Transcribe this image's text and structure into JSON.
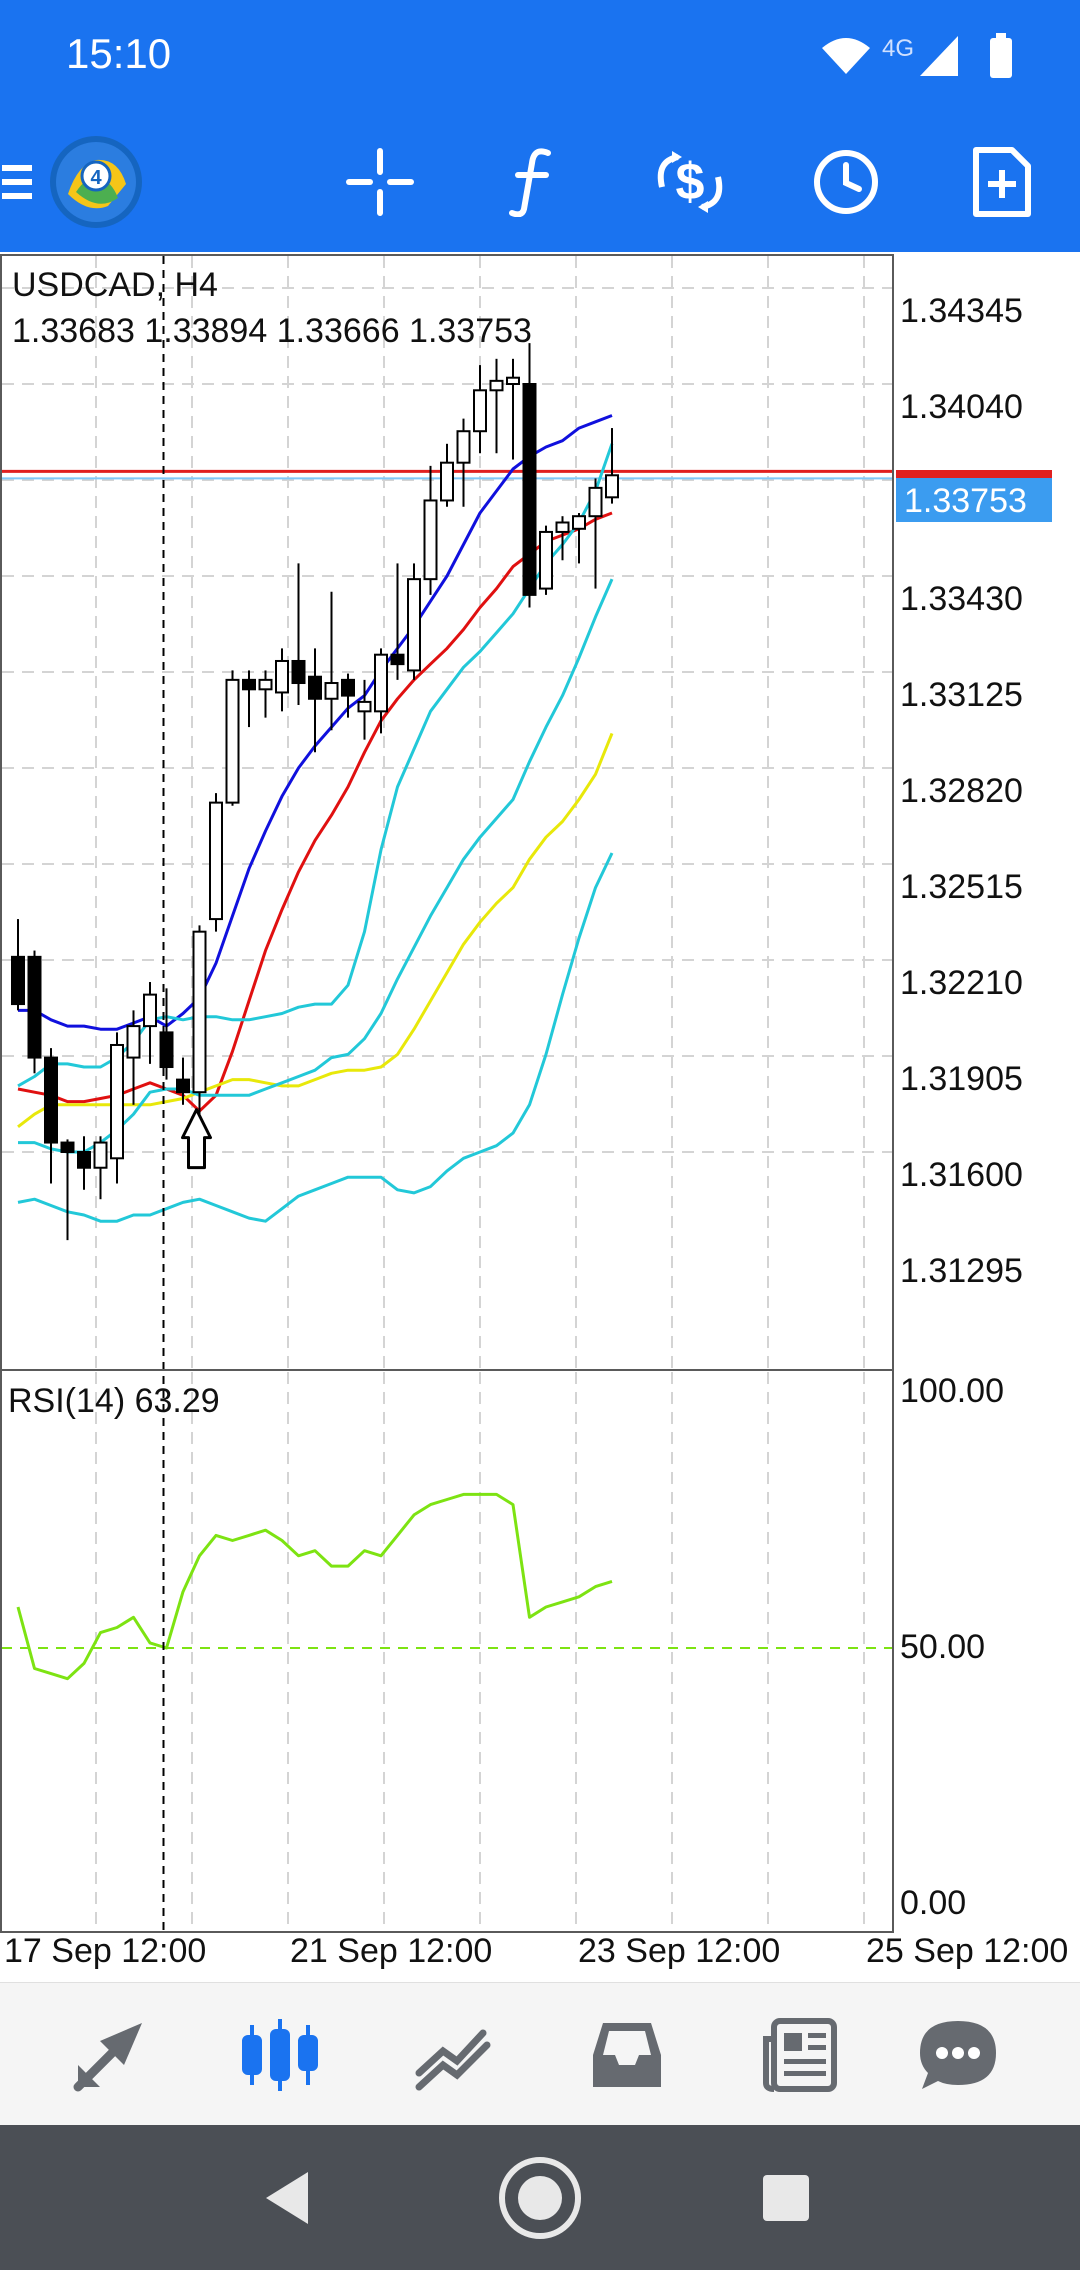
{
  "status_bar": {
    "time": "15:10",
    "network": "4G",
    "icons": [
      "wifi-icon",
      "signal-icon",
      "battery-icon"
    ]
  },
  "toolbar": {
    "icons": [
      "menu-icon",
      "app-logo-icon",
      "crosshair-icon",
      "indicators-icon",
      "symbol-change-icon",
      "timeframe-icon",
      "new-order-icon"
    ],
    "logo_badge": "4",
    "accent": "#1a73f0"
  },
  "chart": {
    "symbol_timeframe": "USDCAD, H4",
    "ohlc": "1.33683 1.33894 1.33666 1.33753",
    "current_price": "1.33753",
    "price_labels": [
      "1.34345",
      "1.34040",
      "1.33430",
      "1.33125",
      "1.32820",
      "1.32515",
      "1.32210",
      "1.31905",
      "1.31600",
      "1.31295"
    ],
    "rsi_label": "RSI(14) 63.29",
    "rsi_levels": [
      "100.00",
      "50.00",
      "0.00"
    ],
    "time_labels": [
      "17 Sep 12:00",
      "21 Sep 12:00",
      "23 Sep 12:00",
      "25 Sep 12:00"
    ]
  },
  "chart_data": {
    "type": "candlestick",
    "title": "USDCAD, H4",
    "ylim": [
      1.311,
      1.3463
    ],
    "bid_line": 1.33753,
    "candles": [
      {
        "o": 1.3222,
        "h": 1.3234,
        "l": 1.3205,
        "c": 1.3207
      },
      {
        "o": 1.3222,
        "h": 1.3224,
        "l": 1.3185,
        "c": 1.319
      },
      {
        "o": 1.319,
        "h": 1.3193,
        "l": 1.315,
        "c": 1.3163
      },
      {
        "o": 1.3163,
        "h": 1.3164,
        "l": 1.3132,
        "c": 1.316
      },
      {
        "o": 1.316,
        "h": 1.3165,
        "l": 1.3148,
        "c": 1.3155
      },
      {
        "o": 1.3155,
        "h": 1.3165,
        "l": 1.3145,
        "c": 1.3163
      },
      {
        "o": 1.3158,
        "h": 1.3198,
        "l": 1.315,
        "c": 1.3194
      },
      {
        "o": 1.319,
        "h": 1.3205,
        "l": 1.3175,
        "c": 1.32
      },
      {
        "o": 1.32,
        "h": 1.3214,
        "l": 1.3188,
        "c": 1.321
      },
      {
        "o": 1.3198,
        "h": 1.3212,
        "l": 1.3183,
        "c": 1.3187
      },
      {
        "o": 1.3183,
        "h": 1.319,
        "l": 1.3175,
        "c": 1.3179
      },
      {
        "o": 1.3179,
        "h": 1.3232,
        "l": 1.3172,
        "c": 1.323
      },
      {
        "o": 1.3234,
        "h": 1.3274,
        "l": 1.323,
        "c": 1.3271
      },
      {
        "o": 1.3271,
        "h": 1.3313,
        "l": 1.327,
        "c": 1.331
      },
      {
        "o": 1.331,
        "h": 1.3313,
        "l": 1.3295,
        "c": 1.3307
      },
      {
        "o": 1.3307,
        "h": 1.3313,
        "l": 1.3298,
        "c": 1.331
      },
      {
        "o": 1.3306,
        "h": 1.332,
        "l": 1.33,
        "c": 1.3316
      },
      {
        "o": 1.3316,
        "h": 1.3347,
        "l": 1.3302,
        "c": 1.3309
      },
      {
        "o": 1.3311,
        "h": 1.332,
        "l": 1.3287,
        "c": 1.3304
      },
      {
        "o": 1.3304,
        "h": 1.3338,
        "l": 1.3294,
        "c": 1.3309
      },
      {
        "o": 1.331,
        "h": 1.3312,
        "l": 1.3298,
        "c": 1.3305
      },
      {
        "o": 1.33,
        "h": 1.331,
        "l": 1.3291,
        "c": 1.3303
      },
      {
        "o": 1.33,
        "h": 1.332,
        "l": 1.3293,
        "c": 1.3318
      },
      {
        "o": 1.3318,
        "h": 1.3347,
        "l": 1.331,
        "c": 1.3315
      },
      {
        "o": 1.3313,
        "h": 1.3347,
        "l": 1.331,
        "c": 1.3342
      },
      {
        "o": 1.3342,
        "h": 1.3378,
        "l": 1.3337,
        "c": 1.3367
      },
      {
        "o": 1.3367,
        "h": 1.3385,
        "l": 1.3365,
        "c": 1.3379
      },
      {
        "o": 1.3379,
        "h": 1.3393,
        "l": 1.3365,
        "c": 1.3389
      },
      {
        "o": 1.3389,
        "h": 1.341,
        "l": 1.3382,
        "c": 1.3402
      },
      {
        "o": 1.3402,
        "h": 1.3412,
        "l": 1.3382,
        "c": 1.3405
      },
      {
        "o": 1.3404,
        "h": 1.3412,
        "l": 1.338,
        "c": 1.3406
      },
      {
        "o": 1.3404,
        "h": 1.3417,
        "l": 1.3333,
        "c": 1.3337
      },
      {
        "o": 1.3339,
        "h": 1.3359,
        "l": 1.3337,
        "c": 1.3357
      },
      {
        "o": 1.3357,
        "h": 1.3362,
        "l": 1.3348,
        "c": 1.336
      },
      {
        "o": 1.3358,
        "h": 1.3363,
        "l": 1.3347,
        "c": 1.3362
      },
      {
        "o": 1.3362,
        "h": 1.3374,
        "l": 1.3339,
        "c": 1.3371
      },
      {
        "o": 1.3368,
        "h": 1.339,
        "l": 1.3366,
        "c": 1.3375
      }
    ],
    "lines": [
      {
        "color": "#1010dd",
        "values": [
          1.3205,
          1.3205,
          1.3202,
          1.32,
          1.32,
          1.3199,
          1.3199,
          1.3201,
          1.3203,
          1.32,
          1.3204,
          1.3209,
          1.322,
          1.3235,
          1.325,
          1.3262,
          1.3273,
          1.3282,
          1.3289,
          1.3295,
          1.3301,
          1.3305,
          1.3313,
          1.332,
          1.3327,
          1.3335,
          1.3343,
          1.3353,
          1.3363,
          1.337,
          1.3377,
          1.3381,
          1.3384,
          1.3386,
          1.339,
          1.3392,
          1.3394
        ]
      },
      {
        "color": "#e01010",
        "values": [
          1.318,
          1.3179,
          1.3178,
          1.3176,
          1.3176,
          1.3177,
          1.3178,
          1.318,
          1.3182,
          1.318,
          1.3178,
          1.3173,
          1.3178,
          1.3192,
          1.3208,
          1.3224,
          1.3237,
          1.3249,
          1.3259,
          1.3267,
          1.3276,
          1.3287,
          1.3297,
          1.3304,
          1.331,
          1.3315,
          1.332,
          1.3326,
          1.3333,
          1.3339,
          1.3346,
          1.335,
          1.3354,
          1.3356,
          1.3358,
          1.3361,
          1.3363
        ]
      },
      {
        "color": "#e8e80a",
        "values": [
          1.3168,
          1.3172,
          1.3175,
          1.3175,
          1.3175,
          1.3175,
          1.3175,
          1.3175,
          1.3175,
          1.3176,
          1.3177,
          1.3179,
          1.3181,
          1.3183,
          1.3183,
          1.3182,
          1.3181,
          1.3181,
          1.3183,
          1.3185,
          1.3186,
          1.3186,
          1.3187,
          1.3191,
          1.3199,
          1.3208,
          1.3217,
          1.3226,
          1.3233,
          1.3239,
          1.3244,
          1.3253,
          1.326,
          1.3265,
          1.3272,
          1.328,
          1.3293
        ]
      },
      {
        "color": "#22c8d8",
        "values": [
          1.3181,
          1.3184,
          1.3188,
          1.3188,
          1.3187,
          1.3187,
          1.319,
          1.3195,
          1.3202,
          1.3203,
          1.3202,
          1.3203,
          1.3203,
          1.3202,
          1.3202,
          1.3203,
          1.3204,
          1.3206,
          1.3207,
          1.3207,
          1.3213,
          1.323,
          1.3256,
          1.3276,
          1.3288,
          1.33,
          1.3307,
          1.3314,
          1.3319,
          1.3325,
          1.3331,
          1.3339,
          1.3347,
          1.3353,
          1.336,
          1.337,
          1.3385
        ]
      },
      {
        "color": "#22c8d8",
        "values": [
          1.3163,
          1.3163,
          1.3161,
          1.316,
          1.316,
          1.3163,
          1.3167,
          1.3172,
          1.3179,
          1.318,
          1.318,
          1.3178,
          1.3178,
          1.3178,
          1.3178,
          1.318,
          1.3182,
          1.3184,
          1.3186,
          1.319,
          1.3191,
          1.3196,
          1.3204,
          1.3215,
          1.3225,
          1.3235,
          1.3244,
          1.3253,
          1.326,
          1.3266,
          1.3272,
          1.3284,
          1.3295,
          1.3305,
          1.3317,
          1.333,
          1.3342
        ]
      },
      {
        "color": "#22c8d8",
        "values": [
          1.3144,
          1.3145,
          1.3143,
          1.3141,
          1.314,
          1.3138,
          1.3138,
          1.314,
          1.314,
          1.3142,
          1.3144,
          1.3145,
          1.3143,
          1.3141,
          1.3139,
          1.3138,
          1.3142,
          1.3146,
          1.3148,
          1.315,
          1.3152,
          1.3152,
          1.3152,
          1.3148,
          1.3147,
          1.3149,
          1.3154,
          1.3158,
          1.316,
          1.3162,
          1.3166,
          1.3175,
          1.3191,
          1.321,
          1.3228,
          1.3244,
          1.3255
        ]
      }
    ],
    "rsi": {
      "color": "#7de312",
      "ylim": [
        0,
        100
      ],
      "values": [
        58,
        46,
        45,
        44,
        47,
        53,
        54,
        56,
        51,
        50,
        61,
        68,
        72,
        71,
        72,
        73,
        71,
        68,
        69,
        66,
        66,
        69,
        68,
        72,
        76,
        78,
        79,
        80,
        80,
        80,
        78,
        56,
        58,
        59,
        60,
        62,
        63
      ]
    },
    "vertical_line_candle_index": 9,
    "arrow_candle_index": 11
  },
  "bottom_nav": {
    "items": [
      "quotes-icon",
      "chart-icon",
      "trade-icon",
      "history-icon",
      "news-icon",
      "chat-icon"
    ],
    "active": "chart-icon",
    "active_color": "#1a73f0",
    "inactive_color": "#666a70"
  },
  "system_nav": {
    "items": [
      "back-icon",
      "home-icon",
      "recents-icon"
    ]
  }
}
